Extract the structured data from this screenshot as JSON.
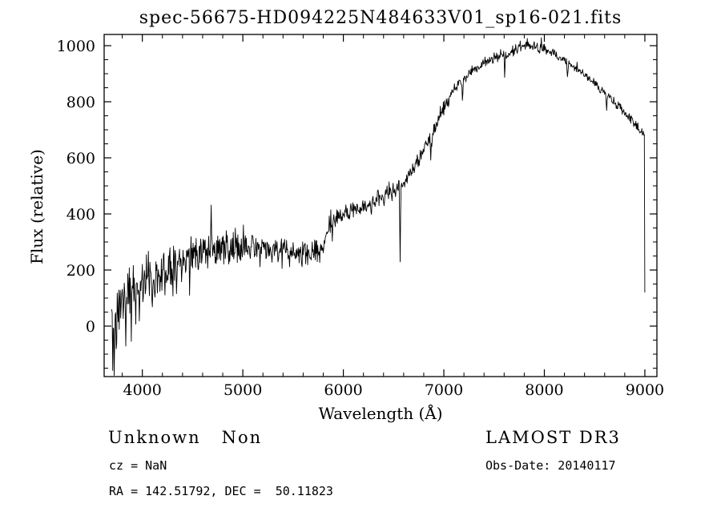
{
  "chart_data": {
    "type": "line",
    "title": "spec-56675-HD094225N484633V01_sp16-021.fits",
    "xlabel": "Wavelength (Å)",
    "ylabel": "Flux (relative)",
    "xlim": [
      3620,
      9120
    ],
    "ylim": [
      -180,
      1040
    ],
    "xticks": [
      4000,
      5000,
      6000,
      7000,
      8000,
      9000
    ],
    "yticks": [
      0,
      200,
      400,
      600,
      800,
      1000
    ],
    "x_minor_step": 200,
    "y_minor_step": 50,
    "line_color": "#000000",
    "sample_step": 5,
    "x_range": [
      3695,
      9000
    ],
    "seed": 11,
    "continuum_points": [
      [
        3700,
        55
      ],
      [
        3750,
        85
      ],
      [
        3800,
        110
      ],
      [
        3900,
        140
      ],
      [
        4000,
        165
      ],
      [
        4100,
        185
      ],
      [
        4200,
        205
      ],
      [
        4300,
        228
      ],
      [
        4400,
        242
      ],
      [
        4500,
        256
      ],
      [
        4600,
        266
      ],
      [
        4700,
        272
      ],
      [
        4800,
        277
      ],
      [
        4900,
        280
      ],
      [
        5000,
        284
      ],
      [
        5100,
        281
      ],
      [
        5200,
        277
      ],
      [
        5300,
        271
      ],
      [
        5400,
        266
      ],
      [
        5500,
        262
      ],
      [
        5600,
        260
      ],
      [
        5700,
        262
      ],
      [
        5800,
        272
      ],
      [
        5830,
        330
      ],
      [
        5860,
        365
      ],
      [
        5900,
        378
      ],
      [
        6000,
        395
      ],
      [
        6100,
        410
      ],
      [
        6200,
        426
      ],
      [
        6300,
        444
      ],
      [
        6400,
        461
      ],
      [
        6500,
        480
      ],
      [
        6600,
        512
      ],
      [
        6700,
        560
      ],
      [
        6800,
        626
      ],
      [
        6900,
        700
      ],
      [
        7000,
        775
      ],
      [
        7100,
        840
      ],
      [
        7200,
        882
      ],
      [
        7300,
        916
      ],
      [
        7400,
        940
      ],
      [
        7500,
        955
      ],
      [
        7600,
        962
      ],
      [
        7700,
        986
      ],
      [
        7800,
        1000
      ],
      [
        7900,
        996
      ],
      [
        8000,
        986
      ],
      [
        8100,
        970
      ],
      [
        8200,
        950
      ],
      [
        8300,
        926
      ],
      [
        8400,
        896
      ],
      [
        8500,
        866
      ],
      [
        8600,
        832
      ],
      [
        8700,
        796
      ],
      [
        8800,
        760
      ],
      [
        8900,
        722
      ],
      [
        9000,
        678
      ]
    ],
    "noise_amplitude_regions": [
      [
        3620,
        3900,
        85
      ],
      [
        3900,
        4300,
        70
      ],
      [
        4300,
        5000,
        52
      ],
      [
        5000,
        5800,
        38
      ],
      [
        5800,
        6500,
        26
      ],
      [
        6500,
        7200,
        22
      ],
      [
        7200,
        8100,
        16
      ],
      [
        8100,
        9010,
        14
      ]
    ],
    "absorption_features": [
      [
        3705,
        170
      ],
      [
        3722,
        240
      ],
      [
        3742,
        170
      ],
      [
        3762,
        125
      ],
      [
        3790,
        105
      ],
      [
        3835,
        135
      ],
      [
        3890,
        115
      ],
      [
        3933,
        150
      ],
      [
        3968,
        135
      ],
      [
        4101,
        120
      ],
      [
        4172,
        90
      ],
      [
        4226,
        100
      ],
      [
        4340,
        125
      ],
      [
        4471,
        80
      ],
      [
        4861,
        95
      ],
      [
        5170,
        70
      ],
      [
        5890,
        60
      ],
      [
        6280,
        55
      ],
      [
        6563,
        265
      ],
      [
        6870,
        95
      ],
      [
        7185,
        65
      ],
      [
        7605,
        75
      ],
      [
        8230,
        55
      ],
      [
        8620,
        50
      ]
    ],
    "emission_spikes": [
      [
        4570,
        90
      ],
      [
        4683,
        130
      ],
      [
        5007,
        115
      ]
    ],
    "edge_artifact": {
      "x": 9000,
      "drop_to": 120
    }
  },
  "annotations": {
    "class_label": "Unknown   Non",
    "survey": "LAMOST DR3",
    "cz": "cz = NaN",
    "obs_date": "Obs-Date: 20140117",
    "ra_dec": "RA = 142.51792, DEC =  50.11823"
  }
}
